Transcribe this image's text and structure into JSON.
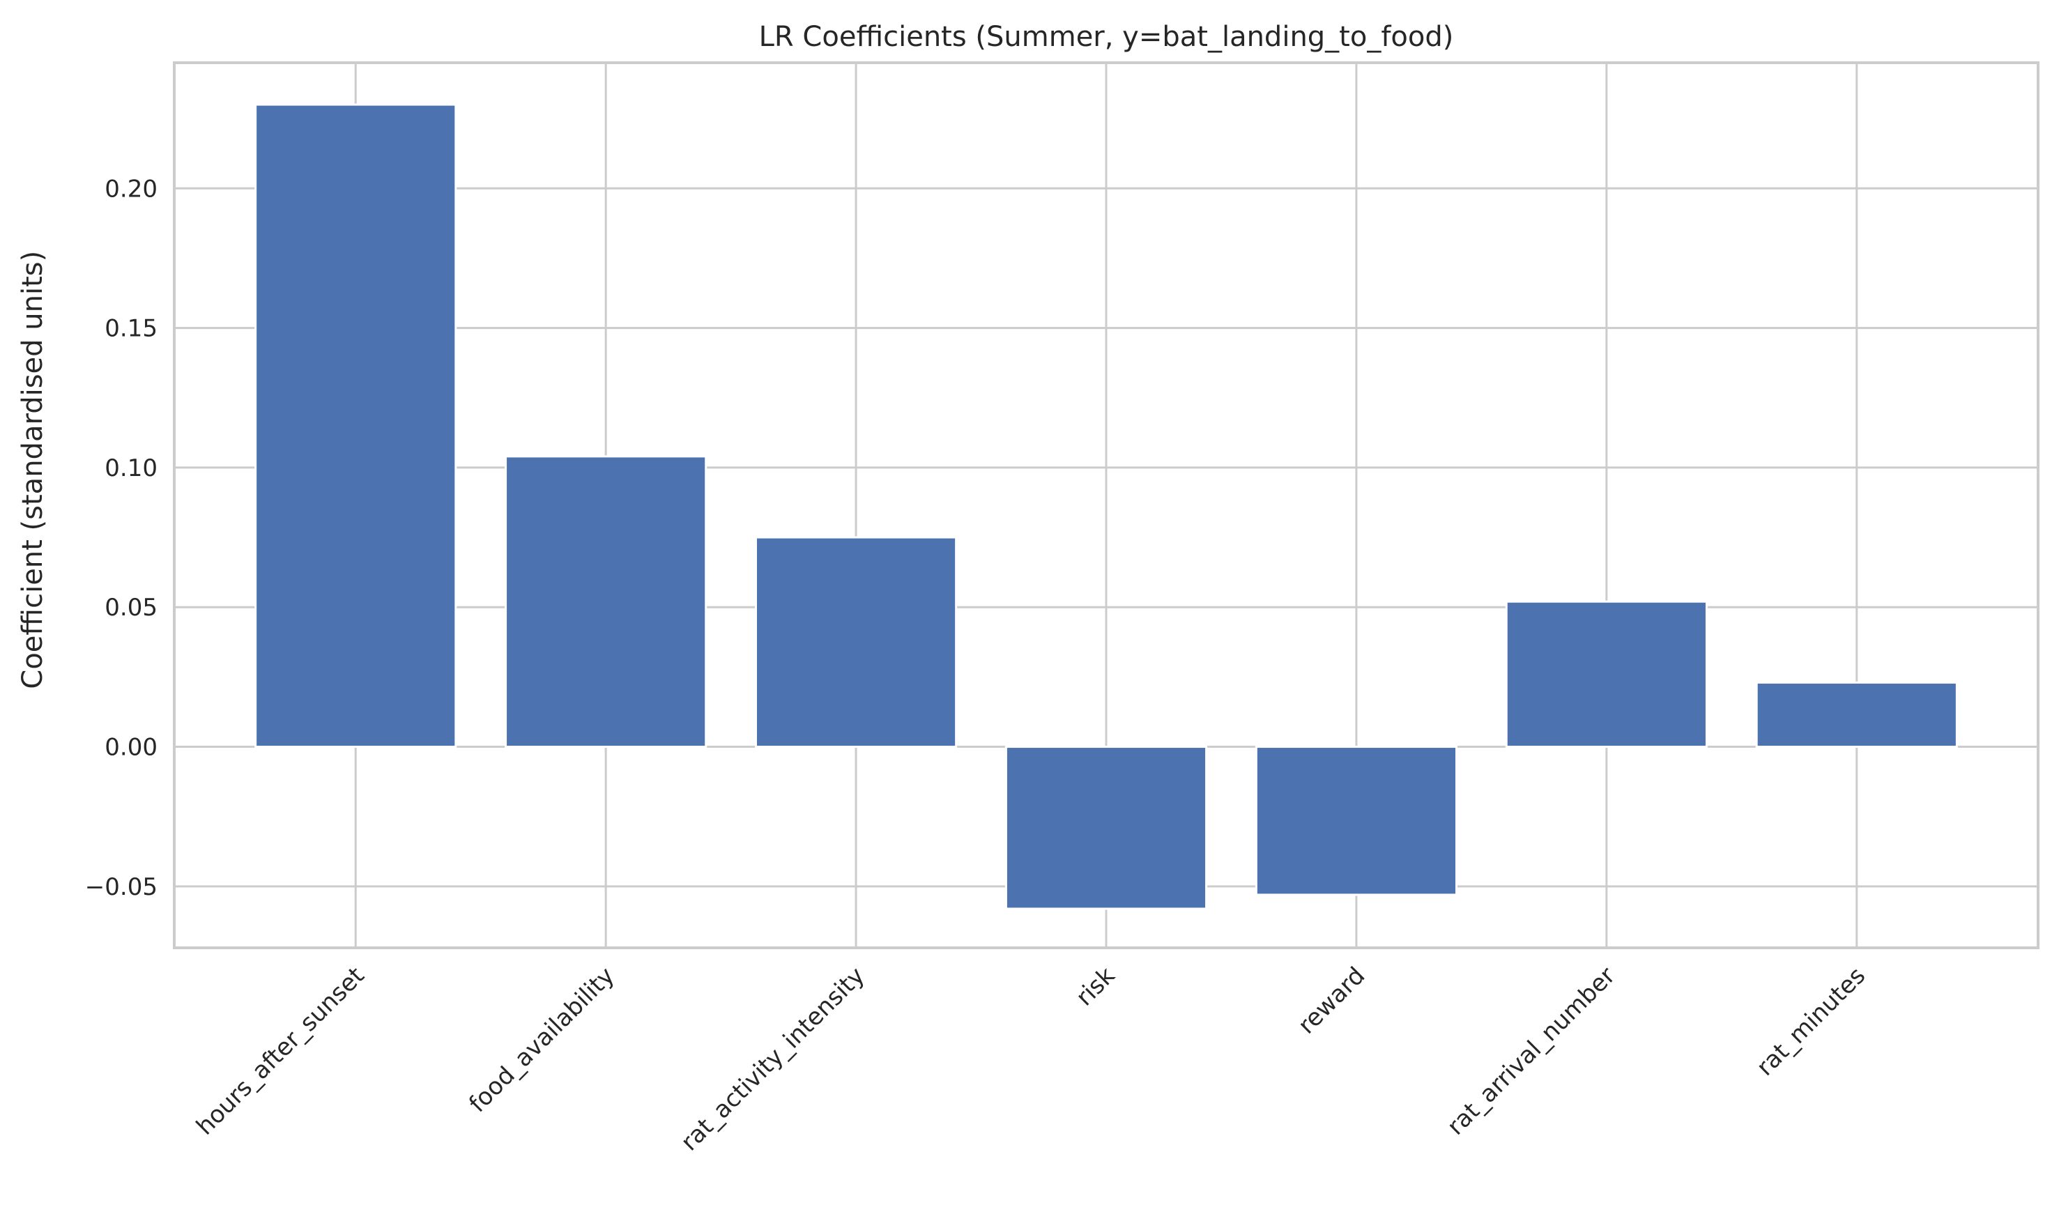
{
  "chart_data": {
    "type": "bar",
    "title": "LR Coefficients (Summer, y=bat_landing_to_food)",
    "xlabel": "",
    "ylabel": "Coefficient (standardised units)",
    "categories": [
      "hours_after_sunset",
      "food_availability",
      "rat_activity_intensity",
      "risk",
      "reward",
      "rat_arrival_number",
      "rat_minutes"
    ],
    "values": [
      0.23,
      0.104,
      0.075,
      -0.058,
      -0.053,
      0.052,
      0.023
    ],
    "ylim": [
      -0.072,
      0.245
    ],
    "yticks": [
      -0.05,
      0.0,
      0.05,
      0.1,
      0.15,
      0.2
    ],
    "ytick_labels": [
      "−0.05",
      "0.00",
      "0.05",
      "0.10",
      "0.15",
      "0.20"
    ],
    "bar_color": "#4c72b0",
    "grid": true,
    "legend": "none"
  }
}
